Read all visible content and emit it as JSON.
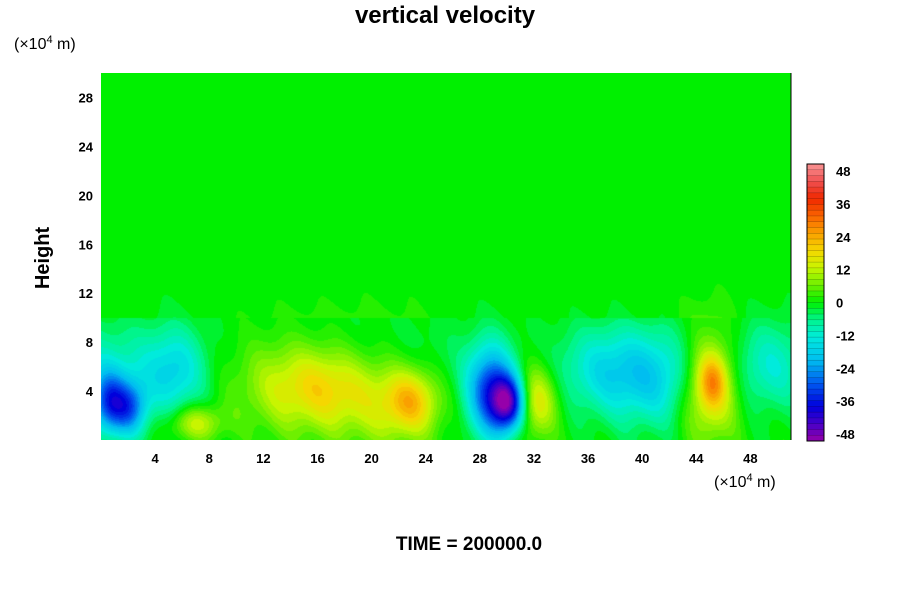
{
  "chart_data": {
    "type": "heatmap",
    "title": "vertical velocity",
    "ylabel": "Height",
    "x_unit_prefix": "(×10",
    "x_unit_exp": "4",
    "x_unit_suffix": " m)",
    "y_unit_prefix": "(×10",
    "y_unit_exp": "4",
    "y_unit_suffix": " m)",
    "xlim": [
      0,
      51
    ],
    "ylim": [
      0,
      30
    ],
    "x_ticks": [
      4,
      8,
      12,
      16,
      20,
      24,
      28,
      32,
      36,
      40,
      44,
      48
    ],
    "y_ticks": [
      4,
      8,
      12,
      16,
      20,
      24,
      28
    ],
    "colorbar": {
      "range": [
        -48,
        48
      ],
      "ticks": [
        48,
        36,
        24,
        12,
        0,
        -12,
        -24,
        -36,
        -48
      ],
      "levels": 48
    },
    "features": [
      {
        "x": 0.6,
        "y": 3.0,
        "sx": 0.9,
        "sy": 1.8,
        "value": -26
      },
      {
        "x": 2.2,
        "y": 2.6,
        "sx": 0.9,
        "sy": 1.6,
        "value": -22
      },
      {
        "x": 5.5,
        "y": 5.5,
        "sx": 1.5,
        "sy": 2.5,
        "value": -12
      },
      {
        "x": 7.0,
        "y": 1.4,
        "sx": 1.4,
        "sy": 1.0,
        "value": 13
      },
      {
        "x": 14.0,
        "y": 4.5,
        "sx": 2.8,
        "sy": 2.6,
        "value": 13
      },
      {
        "x": 17.0,
        "y": 4.5,
        "sx": 2.2,
        "sy": 2.4,
        "value": 12
      },
      {
        "x": 21.0,
        "y": 4.0,
        "sx": 2.6,
        "sy": 3.0,
        "value": 14
      },
      {
        "x": 23.0,
        "y": 3.2,
        "sx": 1.4,
        "sy": 1.8,
        "value": 16
      },
      {
        "x": 28.8,
        "y": 4.0,
        "sx": 1.2,
        "sy": 2.6,
        "value": -30
      },
      {
        "x": 30.2,
        "y": 3.0,
        "sx": 0.9,
        "sy": 1.6,
        "value": -38
      },
      {
        "x": 32.0,
        "y": 3.2,
        "sx": 1.2,
        "sy": 2.0,
        "value": 18
      },
      {
        "x": 37.5,
        "y": 5.5,
        "sx": 2.5,
        "sy": 2.4,
        "value": -8
      },
      {
        "x": 41.0,
        "y": 4.0,
        "sx": 2.2,
        "sy": 2.5,
        "value": -7
      },
      {
        "x": 45.0,
        "y": 4.6,
        "sx": 1.5,
        "sy": 3.0,
        "value": 22
      },
      {
        "x": 45.2,
        "y": 4.8,
        "sx": 0.7,
        "sy": 1.4,
        "value": 12
      },
      {
        "x": 49.5,
        "y": 6.0,
        "sx": 2.0,
        "sy": 2.5,
        "value": -10
      }
    ]
  },
  "footer": {
    "time_label": "TIME = 200000.0"
  }
}
